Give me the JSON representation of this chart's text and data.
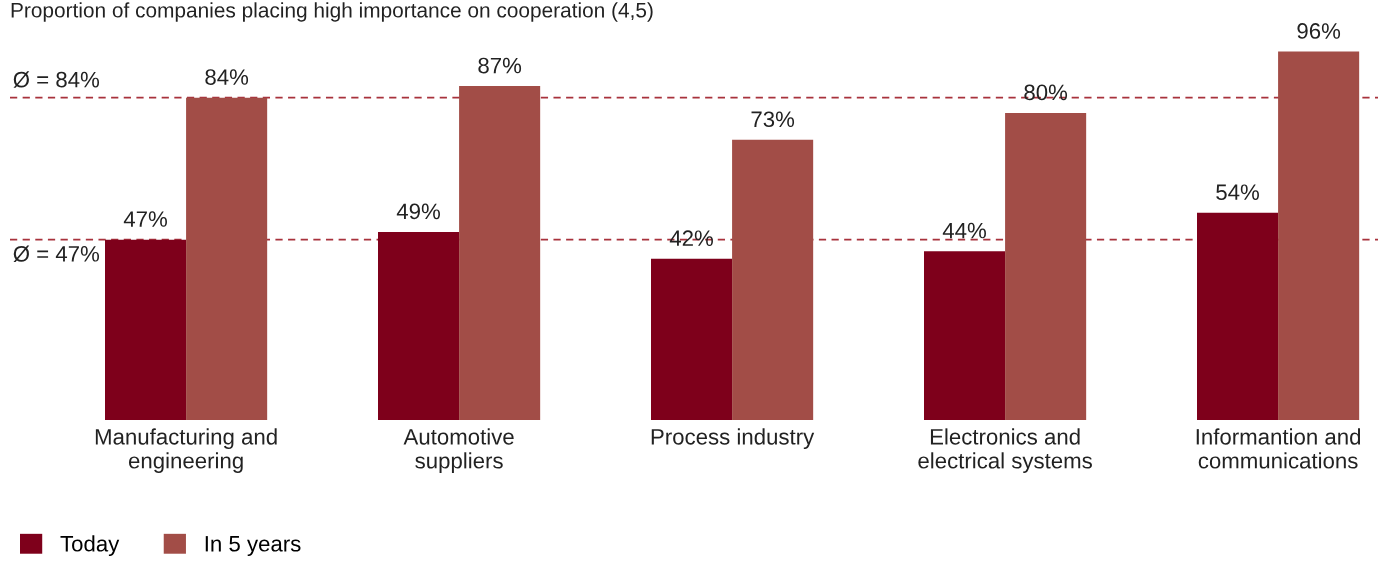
{
  "chart_data": {
    "type": "bar",
    "title": "Proportion of companies placing high importance on cooperation (4,5)",
    "categories": [
      "Manufacturing and\nengineering",
      "Automotive\nsuppliers",
      "Process industry",
      "Electronics and\nelectrical systems",
      "Informantion and\ncommunications"
    ],
    "series": [
      {
        "name": "Today",
        "color": "#7e001b",
        "values": [
          47,
          49,
          42,
          44,
          54
        ],
        "value_labels": [
          "47%",
          "49%",
          "42%",
          "44%",
          "54%"
        ]
      },
      {
        "name": "In 5 years",
        "color": "#a24d47",
        "values": [
          84,
          87,
          73,
          80,
          96
        ],
        "value_labels": [
          "84%",
          "87%",
          "73%",
          "80%",
          "96%"
        ]
      }
    ],
    "ref_lines": [
      {
        "axis": "y",
        "value": 84,
        "label": "Ø = 84%",
        "color": "#a8323c",
        "line_style": "dashed"
      },
      {
        "axis": "y",
        "value": 47,
        "label": "Ø = 47%",
        "color": "#a8323c",
        "line_style": "dashed"
      }
    ],
    "grid": false,
    "legend": "bottom left"
  }
}
